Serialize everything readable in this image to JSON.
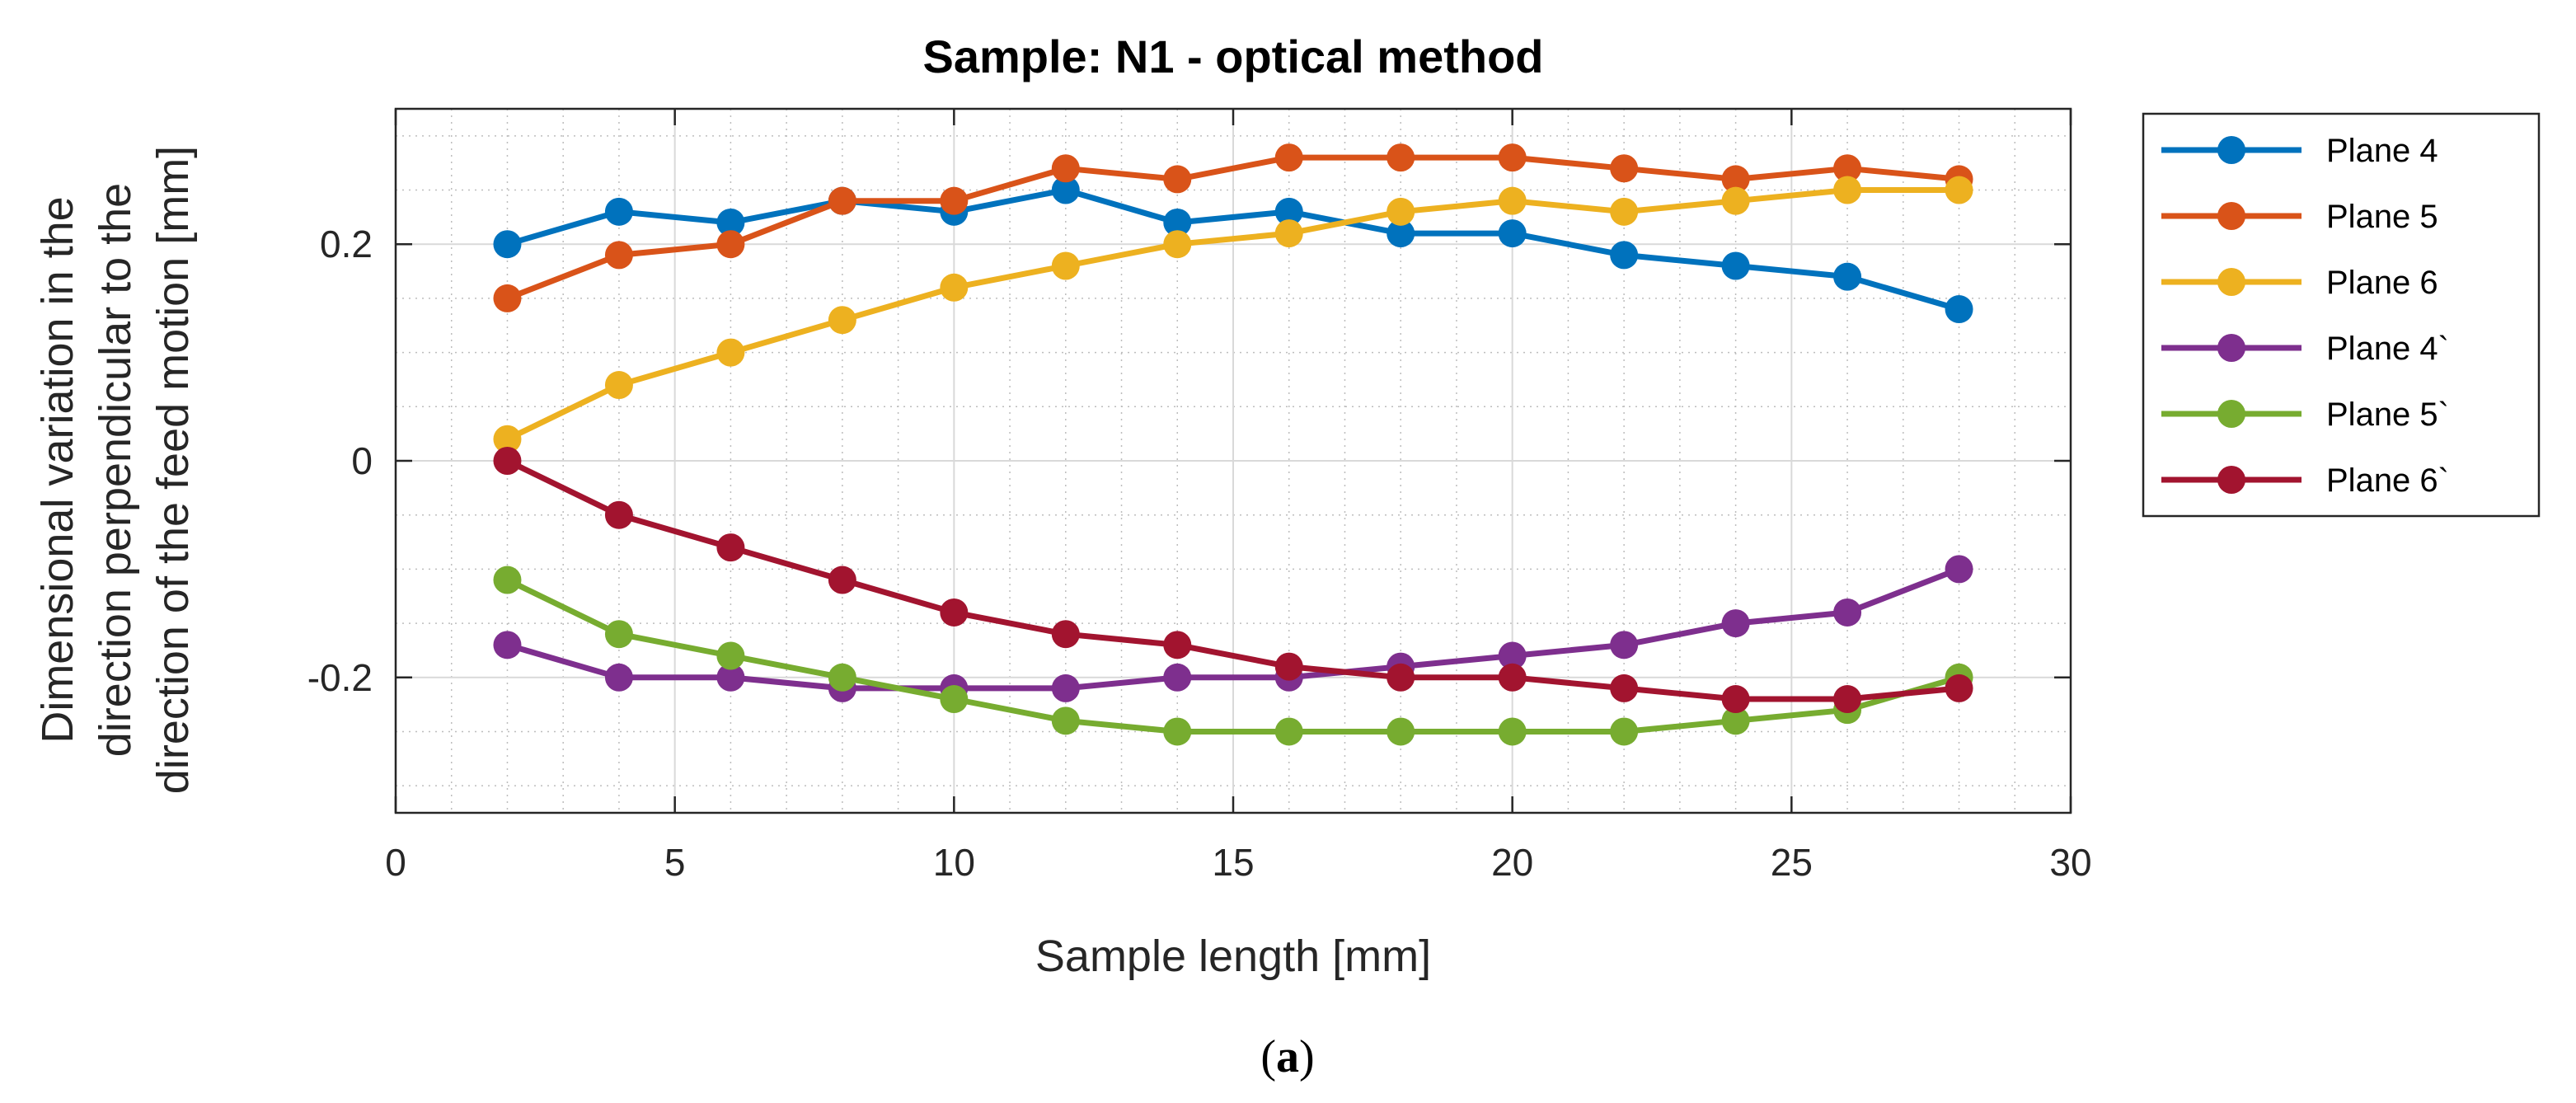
{
  "chart_data": {
    "type": "line",
    "title": "Sample: N1 - optical method",
    "xlabel": "Sample length [mm]",
    "ylabel_lines": [
      "Dimensional variation in the",
      "direction perpendicular to the",
      "direction of the feed motion [mm]"
    ],
    "xlim": [
      0,
      30
    ],
    "ylim": [
      -0.325,
      0.325
    ],
    "xticks": [
      0,
      5,
      10,
      15,
      20,
      25,
      30
    ],
    "yticks": [
      -0.2,
      0,
      0.2
    ],
    "ytick_labels": [
      "-0.2",
      "0",
      "0.2"
    ],
    "grid": true,
    "minor_grid": true,
    "legend_position": "outside-right",
    "x": [
      2,
      4,
      6,
      8,
      10,
      12,
      14,
      16,
      18,
      20,
      22,
      24,
      26,
      28
    ],
    "series": [
      {
        "name": "Plane 4",
        "color": "#0072BD",
        "values": [
          0.2,
          0.23,
          0.22,
          0.24,
          0.23,
          0.25,
          0.22,
          0.23,
          0.21,
          0.21,
          0.19,
          0.18,
          0.17,
          0.14
        ]
      },
      {
        "name": "Plane 5",
        "color": "#D95319",
        "values": [
          0.15,
          0.19,
          0.2,
          0.24,
          0.24,
          0.27,
          0.26,
          0.28,
          0.28,
          0.28,
          0.27,
          0.26,
          0.27,
          0.26
        ]
      },
      {
        "name": "Plane 6",
        "color": "#EDB120",
        "values": [
          0.02,
          0.07,
          0.1,
          0.13,
          0.16,
          0.18,
          0.2,
          0.21,
          0.23,
          0.24,
          0.23,
          0.24,
          0.25,
          0.25
        ]
      },
      {
        "name": "Plane 4`",
        "color": "#7E2F8E",
        "values": [
          -0.17,
          -0.2,
          -0.2,
          -0.21,
          -0.21,
          -0.21,
          -0.2,
          -0.2,
          -0.19,
          -0.18,
          -0.17,
          -0.15,
          -0.14,
          -0.1
        ]
      },
      {
        "name": "Plane 5`",
        "color": "#77AC30",
        "values": [
          -0.11,
          -0.16,
          -0.18,
          -0.2,
          -0.22,
          -0.24,
          -0.25,
          -0.25,
          -0.25,
          -0.25,
          -0.25,
          -0.24,
          -0.23,
          -0.2
        ]
      },
      {
        "name": "Plane 6`",
        "color": "#A2142F",
        "values": [
          0.0,
          -0.05,
          -0.08,
          -0.11,
          -0.14,
          -0.16,
          -0.17,
          -0.19,
          -0.2,
          -0.2,
          -0.21,
          -0.22,
          -0.22,
          -0.21
        ]
      }
    ]
  },
  "caption": {
    "open": "(",
    "letter": "a",
    "close": ")"
  }
}
